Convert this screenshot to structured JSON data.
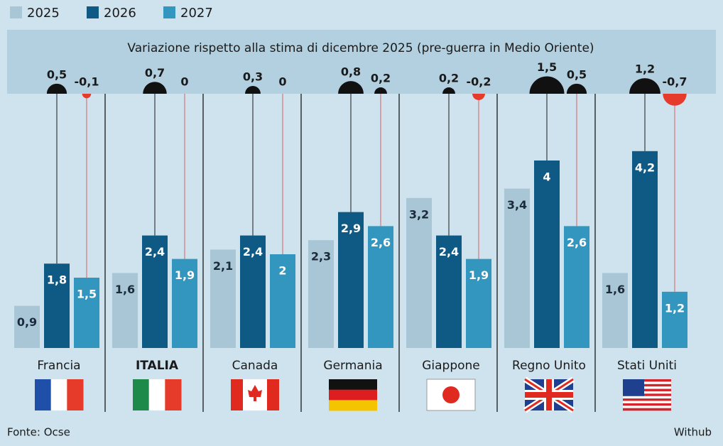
{
  "chart_data": {
    "type": "bar",
    "categories": [
      "Francia",
      "ITALIA",
      "Canada",
      "Germania",
      "Giappone",
      "Regno Unito",
      "Stati Uniti"
    ],
    "series": [
      {
        "name": "2025",
        "color": "#a9c6d6",
        "values": [
          0.9,
          1.6,
          2.1,
          2.3,
          3.2,
          3.4,
          1.6
        ],
        "value_labels": [
          "0,9",
          "1,6",
          "2,1",
          "2,3",
          "3,2",
          "3,4",
          "1,6"
        ]
      },
      {
        "name": "2026",
        "color": "#0f5a85",
        "values": [
          1.8,
          2.4,
          2.4,
          2.9,
          2.4,
          4,
          4.2
        ],
        "value_labels": [
          "1,8",
          "2,4",
          "2,4",
          "2,9",
          "2,4",
          "4",
          "4,2"
        ]
      },
      {
        "name": "2027",
        "color": "#3396bf",
        "values": [
          1.5,
          1.9,
          2,
          2.6,
          1.9,
          2.6,
          1.2
        ],
        "value_labels": [
          "1,5",
          "1,9",
          "2",
          "2,6",
          "1,9",
          "2,6",
          "1,2"
        ]
      }
    ],
    "revisions_title": "Variazione rispetto alla stima di dicembre 2025 (pre-guerra in Medio Oriente)",
    "revisions": [
      {
        "values": [
          0.5,
          0.7,
          0.3,
          0.8,
          0.2,
          1.5,
          1.2
        ],
        "value_labels": [
          "0,5",
          "0,7",
          "0,3",
          "0,8",
          "0,2",
          "1,5",
          "1,2"
        ],
        "positive_color": "#111111",
        "negative_color": "#e63a2a"
      },
      {
        "values": [
          -0.1,
          0,
          0,
          0.2,
          -0.2,
          0.5,
          -0.7
        ],
        "value_labels": [
          "-0,1",
          "0",
          "0",
          "0,2",
          "-0,2",
          "0,5",
          "-0,7"
        ],
        "positive_color": "#111111",
        "negative_color": "#e63a2a"
      }
    ],
    "source": "Fonte: Ocse",
    "credit": "Withub"
  }
}
